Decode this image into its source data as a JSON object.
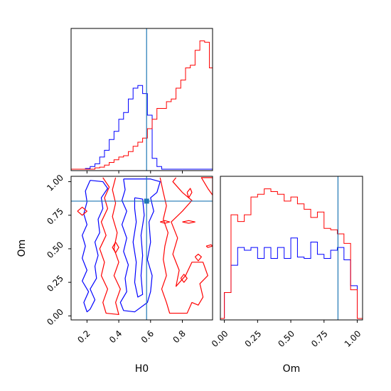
{
  "chart_data": {
    "type": "corner",
    "parameters": [
      "H0",
      "Om"
    ],
    "axis_labels": {
      "x_bottom_left": "H0",
      "y_left": "Om",
      "x_bottom_right": "Om"
    },
    "truth": {
      "H0": 0.575,
      "Om": 0.855
    },
    "colors": {
      "series_a": "#0000ff",
      "series_b": "#ff0000",
      "truth": "#1f77b4"
    },
    "ranges": {
      "H0": [
        0.1,
        0.99
      ],
      "Om": [
        -0.03,
        1.04
      ]
    },
    "ticks": {
      "H0": [
        {
          "v": 0.2,
          "label": "0.2"
        },
        {
          "v": 0.4,
          "label": "0.4"
        },
        {
          "v": 0.6,
          "label": "0.6"
        },
        {
          "v": 0.8,
          "label": "0.8"
        }
      ],
      "Om": [
        {
          "v": 0.0,
          "label": "0.00"
        },
        {
          "v": 0.25,
          "label": "0.25"
        },
        {
          "v": 0.5,
          "label": "0.50"
        },
        {
          "v": 0.75,
          "label": "0.75"
        },
        {
          "v": 1.0,
          "label": "1.00"
        }
      ]
    },
    "hist_H0": {
      "edges": [
        0.1,
        0.13,
        0.16,
        0.19,
        0.22,
        0.25,
        0.28,
        0.31,
        0.34,
        0.37,
        0.4,
        0.43,
        0.46,
        0.49,
        0.52,
        0.55,
        0.58,
        0.61,
        0.64,
        0.67,
        0.7,
        0.73,
        0.76,
        0.79,
        0.82,
        0.85,
        0.88,
        0.91,
        0.94,
        0.97,
        1.0
      ],
      "series": [
        {
          "color_key": "series_a",
          "counts": [
            0,
            0,
            0,
            0.5,
            2,
            4,
            9,
            14,
            22,
            28,
            37,
            42,
            52,
            60,
            62,
            56,
            40,
            8,
            2,
            0,
            0,
            0,
            0,
            0,
            0,
            0,
            0,
            0,
            0,
            0
          ]
        },
        {
          "color_key": "series_b",
          "counts": [
            0,
            0,
            0,
            0,
            0,
            1,
            1.5,
            3,
            5,
            7,
            9,
            10,
            13,
            17,
            20,
            23,
            30,
            37,
            45,
            45,
            50,
            52,
            60,
            66,
            75,
            77,
            88,
            95,
            94,
            75
          ]
        }
      ],
      "ymax": 100
    },
    "hist_Om": {
      "edges": [
        -0.05,
        0.0,
        0.05,
        0.1,
        0.15,
        0.2,
        0.25,
        0.3,
        0.35,
        0.4,
        0.45,
        0.5,
        0.55,
        0.6,
        0.65,
        0.7,
        0.75,
        0.8,
        0.85,
        0.9,
        0.95,
        1.0,
        1.05
      ],
      "series": [
        {
          "color_key": "series_a",
          "counts": [
            0,
            19,
            39,
            52,
            50,
            52,
            44,
            52,
            44,
            52,
            44,
            59,
            45,
            44,
            56,
            47,
            44,
            50,
            52,
            43,
            24,
            0
          ]
        },
        {
          "color_key": "series_b",
          "counts": [
            0,
            19,
            76,
            71,
            76,
            89,
            91,
            95,
            93,
            91,
            86,
            89,
            84,
            80,
            74,
            78,
            66,
            65,
            62,
            55,
            21,
            0
          ]
        }
      ],
      "ymax": 100
    },
    "contours": [
      {
        "color_key": "series_a",
        "paths": [
          [
            [
              0.22,
              1.01
            ],
            [
              0.3,
              1.0
            ],
            [
              0.33,
              0.95
            ],
            [
              0.29,
              0.88
            ],
            [
              0.3,
              0.8
            ],
            [
              0.27,
              0.72
            ],
            [
              0.28,
              0.62
            ],
            [
              0.25,
              0.55
            ],
            [
              0.27,
              0.45
            ],
            [
              0.25,
              0.37
            ],
            [
              0.26,
              0.28
            ],
            [
              0.22,
              0.2
            ],
            [
              0.25,
              0.12
            ],
            [
              0.22,
              0.05
            ],
            [
              0.2,
              0.03
            ],
            [
              0.18,
              0.1
            ],
            [
              0.21,
              0.18
            ],
            [
              0.17,
              0.26
            ],
            [
              0.2,
              0.34
            ],
            [
              0.17,
              0.43
            ],
            [
              0.19,
              0.52
            ],
            [
              0.17,
              0.6
            ],
            [
              0.2,
              0.68
            ],
            [
              0.18,
              0.76
            ],
            [
              0.2,
              0.85
            ],
            [
              0.19,
              0.93
            ],
            [
              0.22,
              1.01
            ]
          ],
          [
            [
              0.43,
              1.02
            ],
            [
              0.6,
              1.02
            ],
            [
              0.66,
              1.0
            ],
            [
              0.64,
              0.92
            ],
            [
              0.6,
              0.88
            ],
            [
              0.62,
              0.78
            ],
            [
              0.59,
              0.7
            ],
            [
              0.6,
              0.55
            ],
            [
              0.58,
              0.42
            ],
            [
              0.61,
              0.3
            ],
            [
              0.6,
              0.18
            ],
            [
              0.58,
              0.1
            ],
            [
              0.5,
              0.03
            ],
            [
              0.43,
              0.04
            ],
            [
              0.41,
              0.1
            ],
            [
              0.45,
              0.18
            ],
            [
              0.44,
              0.28
            ],
            [
              0.46,
              0.38
            ],
            [
              0.43,
              0.48
            ],
            [
              0.45,
              0.58
            ],
            [
              0.42,
              0.68
            ],
            [
              0.45,
              0.78
            ],
            [
              0.42,
              0.86
            ],
            [
              0.44,
              0.94
            ],
            [
              0.43,
              1.02
            ]
          ],
          [
            [
              0.5,
              0.88
            ],
            [
              0.55,
              0.87
            ],
            [
              0.56,
              0.75
            ],
            [
              0.54,
              0.6
            ],
            [
              0.55,
              0.45
            ],
            [
              0.54,
              0.3
            ],
            [
              0.55,
              0.16
            ],
            [
              0.52,
              0.14
            ],
            [
              0.5,
              0.25
            ],
            [
              0.51,
              0.4
            ],
            [
              0.49,
              0.55
            ],
            [
              0.51,
              0.7
            ],
            [
              0.5,
              0.8
            ],
            [
              0.5,
              0.88
            ]
          ]
        ]
      },
      {
        "color_key": "series_b",
        "paths": [
          [
            [
              0.3,
              1.03
            ],
            [
              0.34,
              0.96
            ],
            [
              0.31,
              0.88
            ],
            [
              0.33,
              0.8
            ],
            [
              0.29,
              0.7
            ],
            [
              0.32,
              0.6
            ],
            [
              0.28,
              0.5
            ],
            [
              0.31,
              0.4
            ],
            [
              0.29,
              0.3
            ],
            [
              0.33,
              0.2
            ],
            [
              0.3,
              0.1
            ],
            [
              0.32,
              0.02
            ],
            [
              0.4,
              0.01
            ],
            [
              0.38,
              0.1
            ],
            [
              0.41,
              0.2
            ],
            [
              0.37,
              0.3
            ],
            [
              0.4,
              0.4
            ],
            [
              0.37,
              0.5
            ],
            [
              0.39,
              0.62
            ],
            [
              0.36,
              0.74
            ],
            [
              0.38,
              0.84
            ],
            [
              0.36,
              0.94
            ],
            [
              0.38,
              1.03
            ]
          ],
          [
            [
              0.66,
              1.03
            ],
            [
              0.68,
              0.92
            ],
            [
              0.7,
              0.82
            ],
            [
              0.68,
              0.72
            ],
            [
              0.71,
              0.62
            ],
            [
              0.69,
              0.52
            ],
            [
              0.68,
              0.42
            ],
            [
              0.7,
              0.3
            ],
            [
              0.67,
              0.2
            ],
            [
              0.7,
              0.1
            ],
            [
              0.72,
              0.02
            ],
            [
              0.83,
              0.02
            ],
            [
              0.86,
              0.1
            ],
            [
              0.9,
              0.08
            ],
            [
              0.93,
              0.14
            ],
            [
              0.91,
              0.24
            ],
            [
              0.96,
              0.3
            ],
            [
              0.93,
              0.4
            ],
            [
              0.86,
              0.4
            ],
            [
              0.82,
              0.3
            ],
            [
              0.76,
              0.22
            ],
            [
              0.78,
              0.34
            ],
            [
              0.74,
              0.46
            ],
            [
              0.77,
              0.58
            ],
            [
              0.73,
              0.7
            ],
            [
              0.8,
              0.78
            ],
            [
              0.86,
              0.86
            ],
            [
              0.8,
              0.92
            ],
            [
              0.74,
              1.0
            ],
            [
              0.76,
              1.03
            ]
          ],
          [
            [
              0.96,
              0.95
            ],
            [
              0.99,
              0.9
            ],
            [
              0.99,
              1.03
            ],
            [
              0.92,
              1.03
            ],
            [
              0.96,
              0.95
            ]
          ],
          [
            [
              0.14,
              0.78
            ],
            [
              0.17,
              0.81
            ],
            [
              0.2,
              0.78
            ],
            [
              0.17,
              0.75
            ],
            [
              0.14,
              0.78
            ]
          ],
          [
            [
              0.83,
              0.92
            ],
            [
              0.85,
              0.95
            ],
            [
              0.86,
              0.92
            ],
            [
              0.84,
              0.88
            ],
            [
              0.83,
              0.92
            ]
          ],
          [
            [
              0.66,
              0.7
            ],
            [
              0.69,
              0.71
            ],
            [
              0.72,
              0.7
            ],
            [
              0.69,
              0.69
            ],
            [
              0.66,
              0.7
            ]
          ],
          [
            [
              0.8,
              0.7
            ],
            [
              0.84,
              0.71
            ],
            [
              0.88,
              0.7
            ],
            [
              0.84,
              0.69
            ],
            [
              0.8,
              0.7
            ]
          ],
          [
            [
              0.38,
              0.55
            ],
            [
              0.4,
              0.51
            ],
            [
              0.38,
              0.47
            ],
            [
              0.36,
              0.51
            ],
            [
              0.38,
              0.55
            ]
          ],
          [
            [
              0.88,
              0.44
            ],
            [
              0.9,
              0.46
            ],
            [
              0.92,
              0.44
            ],
            [
              0.9,
              0.41
            ],
            [
              0.88,
              0.44
            ]
          ],
          [
            [
              0.79,
              0.28
            ],
            [
              0.81,
              0.31
            ],
            [
              0.83,
              0.28
            ],
            [
              0.81,
              0.25
            ],
            [
              0.79,
              0.28
            ]
          ],
          [
            [
              0.95,
              0.52
            ],
            [
              0.98,
              0.53
            ],
            [
              0.99,
              0.52
            ],
            [
              0.96,
              0.51
            ],
            [
              0.95,
              0.52
            ]
          ]
        ]
      }
    ]
  }
}
